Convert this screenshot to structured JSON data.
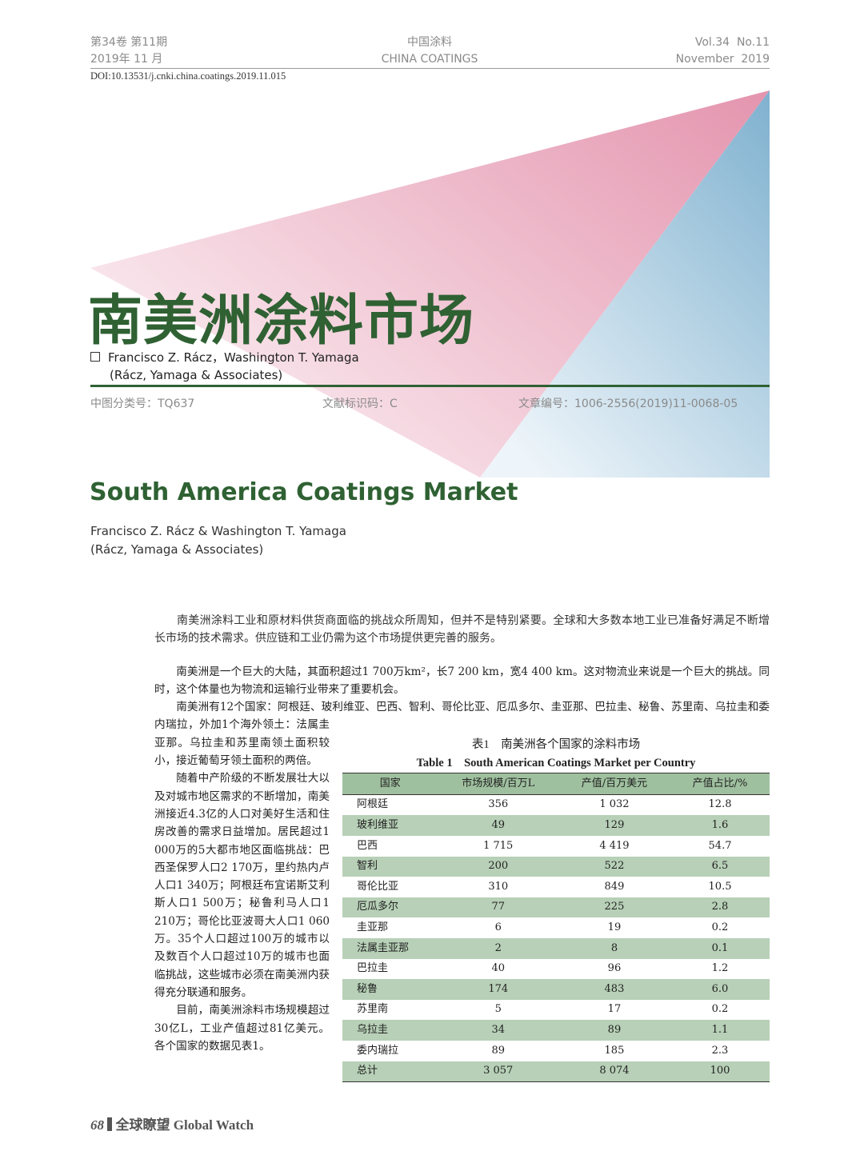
{
  "header": {
    "left": [
      "第34卷 第11期",
      "2019年 11 月"
    ],
    "center": [
      "中国涂料",
      "CHINA COATINGS"
    ],
    "right": [
      "Vol.34  No.11",
      "November  2019"
    ]
  },
  "doi": "DOI:10.13531/j.cnki.china.coatings.2019.11.015",
  "title": "南美洲涂料市场",
  "authors": [
    "Francisco Z. Rácz，Washington T. Yamaga",
    "(Rácz, Yamaga & Associates)"
  ],
  "classification": [
    "中图分类号：TQ637",
    "文献标识码：C",
    "文章编号：1006-2556(2019)11-0068-05"
  ],
  "english_title": "South America Coatings Market",
  "english_authors": [
    "Francisco Z. Rácz & Washington T. Yamaga",
    "(Rácz, Yamaga & Associates)"
  ],
  "abstract": "南美洲涂料工业和原材料供货商面临的挑战众所周知，但并不是特别紧要。全球和大多数本地工业已准备好满足不断增长市场的技术需求。供应链和工业仍需为这个市场提供更完善的服务。",
  "paragraphs": [
    "南美洲是一个巨大的大陆，其面积超过1 700万km²，长7 200 km，宽4 400 km。这对物流业来说是一个巨大的挑战。同时，这个体量也为物流和运输行业带来了重要机会。",
    "南美洲有12个国家：阿根廷、玻利维亚、巴西、智利、哥伦比亚、厄瓜多尔、圭亚那、巴拉圭、秘鲁、苏里南、乌拉圭和委内瑞拉，外加1个海外领土：法属圭亚那。乌拉圭和苏里南领土面积较小，接近葡萄牙领土面积的两倍。",
    "随着中产阶级的不断发展壮大以及对城市地区需求的不断增加，南美洲接近4.3亿的人口对美好生活和住房改善的需求日益增加。居民超过1 000万的5大都市地区面临挑战：巴西圣保罗人口2 170万，里约热内卢人口1 340万；阿根廷布宜诺斯艾利斯人口1 500万；秘鲁利马人口1 210万；哥伦比亚波哥大人口1 060万。35个人口超过100万的城市以及数百个人口超过10万的城市也面临挑战，这些城市必须在南美洲内获得充分联通和服务。",
    "目前，南美洲涂料市场规模超过30亿L，工业产值超过81亿美元。各个国家的数据见表1。"
  ],
  "table": {
    "caption": "表1　南美洲各个国家的涂料市场",
    "caption_en": "Table 1　South American Coatings Market per Country",
    "columns": [
      "国家",
      "市场规模/百万L",
      "产值/百万美元",
      "产值占比/%"
    ],
    "rows": [
      [
        "阿根廷",
        "356",
        "1 032",
        "12.8"
      ],
      [
        "玻利维亚",
        "49",
        "129",
        "1.6"
      ],
      [
        "巴西",
        "1 715",
        "4 419",
        "54.7"
      ],
      [
        "智利",
        "200",
        "522",
        "6.5"
      ],
      [
        "哥伦比亚",
        "310",
        "849",
        "10.5"
      ],
      [
        "厄瓜多尔",
        "77",
        "225",
        "2.8"
      ],
      [
        "圭亚那",
        "6",
        "19",
        "0.2"
      ],
      [
        "法属圭亚那",
        "2",
        "8",
        "0.1"
      ],
      [
        "巴拉圭",
        "40",
        "96",
        "1.2"
      ],
      [
        "秘鲁",
        "174",
        "483",
        "6.0"
      ],
      [
        "苏里南",
        "5",
        "17",
        "0.2"
      ],
      [
        "乌拉圭",
        "34",
        "89",
        "1.1"
      ],
      [
        "委内瑞拉",
        "89",
        "185",
        "2.3"
      ],
      [
        "总计",
        "3 057",
        "8 074",
        "100"
      ]
    ]
  },
  "footer": {
    "page": "68",
    "section": "全球瞭望 Global Watch"
  }
}
